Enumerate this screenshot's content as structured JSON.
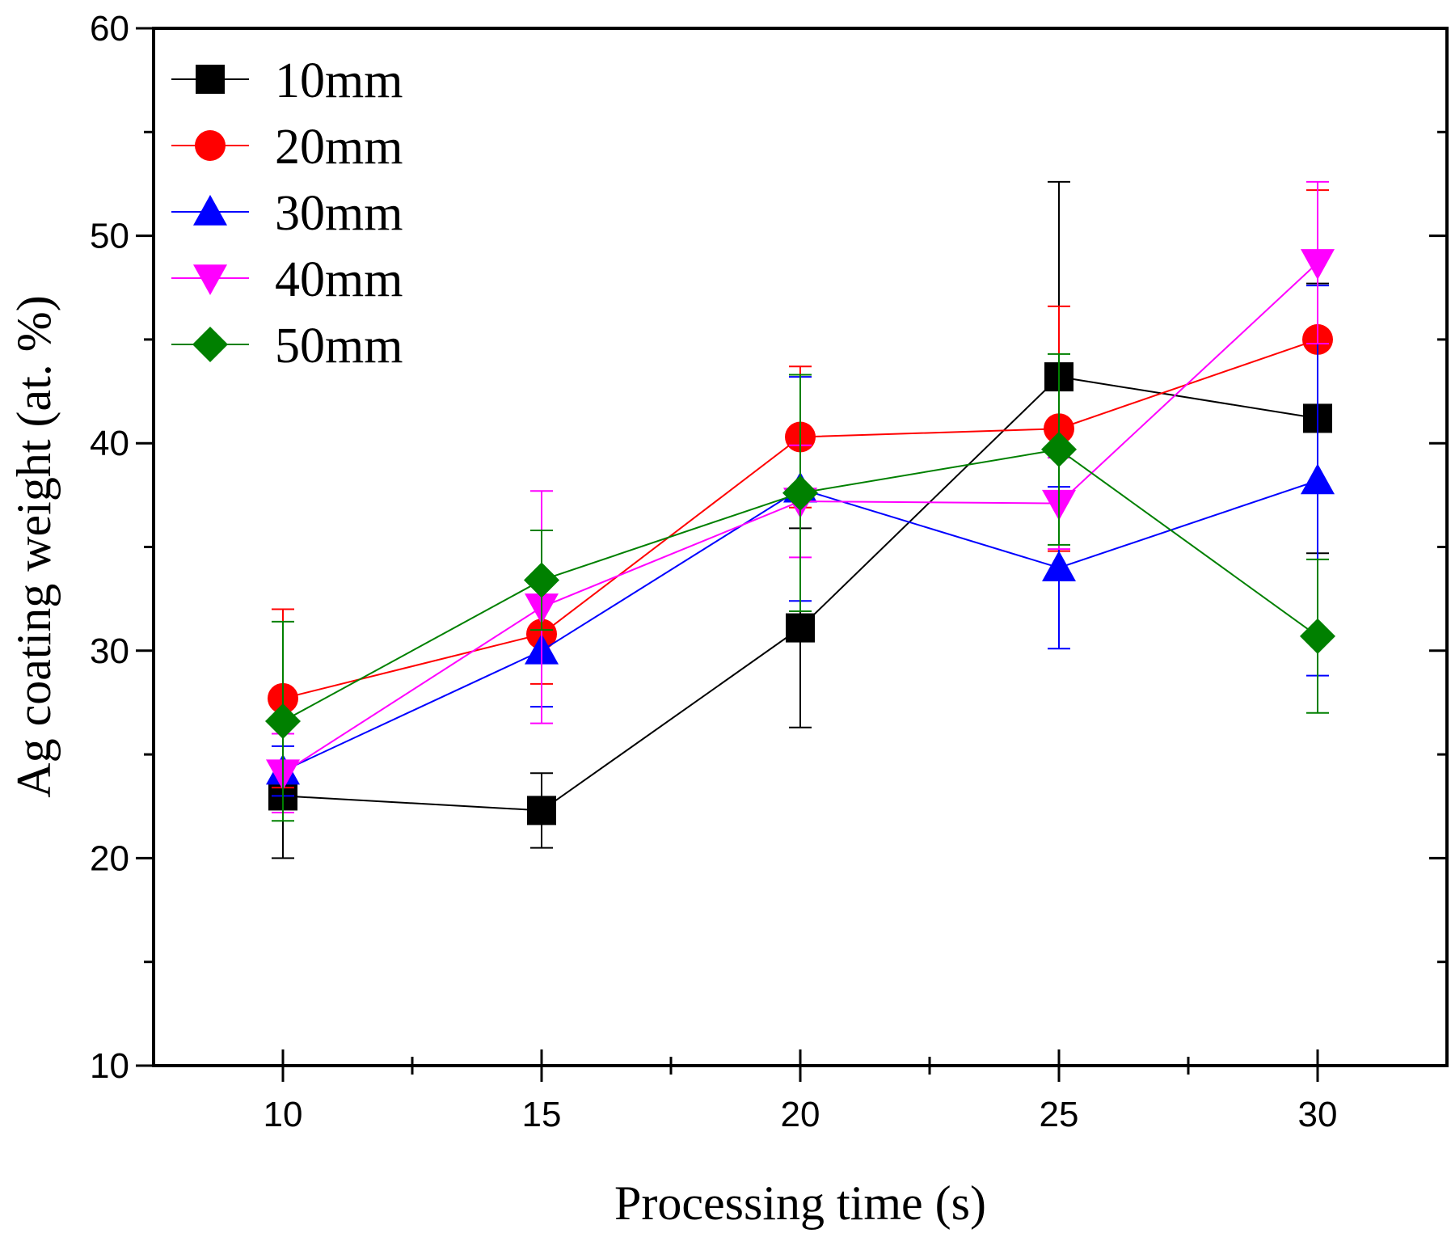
{
  "chart_data": {
    "type": "line",
    "title": "",
    "xlabel": "Processing time (s)",
    "ylabel": "Ag coating weight (at. %)",
    "xlim": [
      7.5,
      32.5
    ],
    "ylim": [
      10,
      60
    ],
    "xticks": [
      10,
      15,
      20,
      25,
      30
    ],
    "yticks": [
      10,
      20,
      30,
      40,
      50,
      60
    ],
    "x_minor_step": 2.5,
    "y_minor_step": 5,
    "grid": false,
    "legend_position": "top-left",
    "x": [
      10,
      15,
      20,
      25,
      30
    ],
    "series": [
      {
        "name": "10mm",
        "color": "#000000",
        "marker": "square",
        "values": [
          23.0,
          22.3,
          31.1,
          43.2,
          41.2
        ],
        "errors": [
          3.0,
          1.8,
          4.8,
          9.4,
          6.5
        ]
      },
      {
        "name": "20mm",
        "color": "#ff0000",
        "marker": "circle",
        "values": [
          27.7,
          30.8,
          40.3,
          40.7,
          45.0
        ],
        "errors": [
          4.3,
          2.4,
          3.4,
          5.9,
          7.2
        ]
      },
      {
        "name": "30mm",
        "color": "#0000ff",
        "marker": "triangle-up",
        "values": [
          24.2,
          30.0,
          37.8,
          34.0,
          38.2
        ],
        "errors": [
          1.2,
          2.7,
          5.4,
          3.9,
          9.4
        ]
      },
      {
        "name": "40mm",
        "color": "#ff00ff",
        "marker": "triangle-down",
        "values": [
          24.1,
          32.1,
          37.2,
          37.1,
          48.7
        ],
        "errors": [
          1.9,
          5.6,
          2.7,
          2.2,
          3.9
        ]
      },
      {
        "name": "50mm",
        "color": "#008000",
        "marker": "diamond",
        "values": [
          26.6,
          33.4,
          37.6,
          39.7,
          30.7
        ],
        "errors": [
          4.8,
          2.4,
          5.7,
          4.6,
          3.7
        ]
      }
    ]
  }
}
